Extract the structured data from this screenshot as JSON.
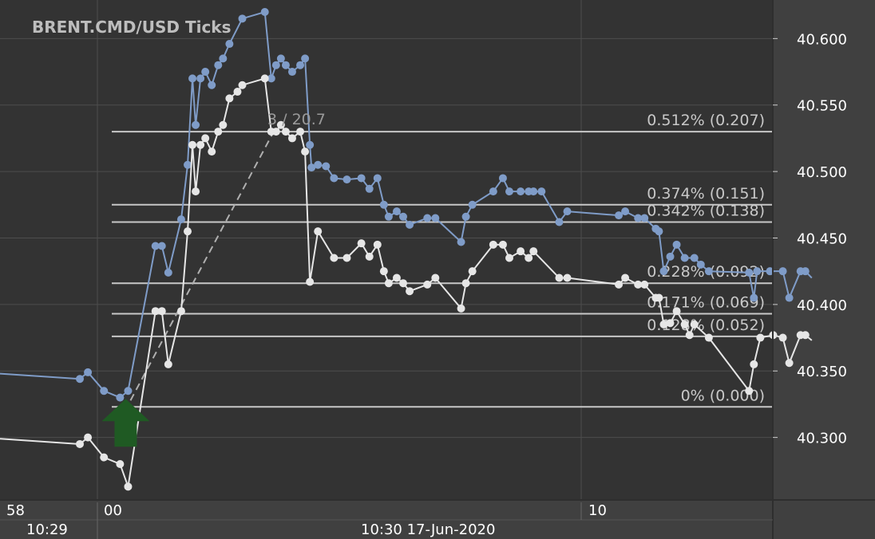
{
  "chart_data": {
    "type": "line",
    "title": "BRENT.CMD/USD  Ticks",
    "ylim": [
      40.253,
      40.629
    ],
    "y_ticks": [
      "40.600",
      "40.550",
      "40.500",
      "40.450",
      "40.400",
      "40.350",
      "40.300"
    ],
    "x_time_labels": [
      "58",
      "00",
      "10"
    ],
    "x_date_labels": [
      "10:29",
      "10:30 17-Jun-2020"
    ],
    "grid": true,
    "colors": {
      "background": "#333333",
      "axis_background": "#404040",
      "grid": "#4d4d4d",
      "ask": "#7f9cc8",
      "bid": "#e6e6e6",
      "fib_line": "#c8c8c8",
      "arrow": "#1f5a23",
      "dashed": "#b0b0b0"
    },
    "series": [
      {
        "values": [
          [
            0,
            40.348
          ],
          [
            6.5,
            40.344
          ],
          [
            7,
            40.349
          ],
          [
            8,
            40.335
          ],
          [
            9,
            40.33
          ],
          [
            9.5,
            40.335
          ],
          [
            11.2,
            40.444
          ],
          [
            11.6,
            40.444
          ],
          [
            12,
            40.424
          ],
          [
            12.8,
            40.464
          ],
          [
            13.2,
            40.505
          ],
          [
            13.5,
            40.57
          ],
          [
            13.7,
            40.535
          ],
          [
            14,
            40.57
          ],
          [
            14.3,
            40.575
          ],
          [
            14.7,
            40.565
          ],
          [
            15.1,
            40.58
          ],
          [
            15.4,
            40.585
          ],
          [
            15.8,
            40.596
          ],
          [
            16.6,
            40.615
          ],
          [
            18,
            40.62
          ],
          [
            18.4,
            40.57
          ],
          [
            18.7,
            40.58
          ],
          [
            19,
            40.585
          ],
          [
            19.3,
            40.58
          ],
          [
            19.7,
            40.575
          ],
          [
            20.2,
            40.58
          ],
          [
            20.5,
            40.585
          ],
          [
            20.8,
            40.52
          ],
          [
            20.9,
            40.503
          ],
          [
            21.3,
            40.505
          ],
          [
            21.8,
            40.504
          ],
          [
            22.3,
            40.495
          ],
          [
            23.1,
            40.494
          ],
          [
            24,
            40.495
          ],
          [
            24.5,
            40.487
          ],
          [
            25,
            40.495
          ],
          [
            25.4,
            40.475
          ],
          [
            25.7,
            40.466
          ],
          [
            26.2,
            40.47
          ],
          [
            26.6,
            40.466
          ],
          [
            27,
            40.46
          ],
          [
            28.1,
            40.465
          ],
          [
            28.6,
            40.465
          ],
          [
            30.2,
            40.447
          ],
          [
            30.5,
            40.466
          ],
          [
            30.9,
            40.475
          ],
          [
            32.2,
            40.485
          ],
          [
            32.8,
            40.495
          ],
          [
            33.2,
            40.485
          ],
          [
            33.9,
            40.485
          ],
          [
            34.4,
            40.485
          ],
          [
            34.7,
            40.485
          ],
          [
            35.2,
            40.485
          ],
          [
            36.3,
            40.462
          ],
          [
            36.8,
            40.47
          ],
          [
            40,
            40.467
          ],
          [
            40.4,
            40.47
          ],
          [
            41.2,
            40.465
          ],
          [
            41.6,
            40.465
          ],
          [
            42.3,
            40.457
          ],
          [
            42.5,
            40.455
          ],
          [
            42.8,
            40.425
          ],
          [
            43.2,
            40.436
          ],
          [
            43.6,
            40.445
          ],
          [
            44.1,
            40.435
          ],
          [
            44.7,
            40.435
          ],
          [
            45.1,
            40.43
          ],
          [
            45.6,
            40.425
          ],
          [
            48.1,
            40.424
          ],
          [
            48.4,
            40.405
          ],
          [
            48.6,
            40.425
          ],
          [
            49.4,
            40.425
          ],
          [
            50.2,
            40.425
          ],
          [
            50.6,
            40.405
          ],
          [
            51.3,
            40.425
          ],
          [
            51.6,
            40.425
          ],
          [
            52,
            40.42
          ]
        ]
      },
      {
        "values": [
          [
            0,
            40.299
          ],
          [
            6.5,
            40.295
          ],
          [
            7,
            40.3
          ],
          [
            8,
            40.285
          ],
          [
            9,
            40.28
          ],
          [
            9.5,
            40.263
          ],
          [
            11.2,
            40.395
          ],
          [
            11.6,
            40.395
          ],
          [
            12,
            40.355
          ],
          [
            12.8,
            40.395
          ],
          [
            13.2,
            40.455
          ],
          [
            13.5,
            40.52
          ],
          [
            13.7,
            40.485
          ],
          [
            14,
            40.52
          ],
          [
            14.3,
            40.525
          ],
          [
            14.7,
            40.515
          ],
          [
            15.1,
            40.53
          ],
          [
            15.4,
            40.535
          ],
          [
            15.8,
            40.555
          ],
          [
            16.3,
            40.56
          ],
          [
            16.6,
            40.565
          ],
          [
            18,
            40.57
          ],
          [
            18.4,
            40.53
          ],
          [
            18.7,
            40.53
          ],
          [
            19,
            40.535
          ],
          [
            19.3,
            40.53
          ],
          [
            19.7,
            40.525
          ],
          [
            20.2,
            40.53
          ],
          [
            20.5,
            40.515
          ],
          [
            20.8,
            40.417
          ],
          [
            21.3,
            40.455
          ],
          [
            22.3,
            40.435
          ],
          [
            23.1,
            40.435
          ],
          [
            24,
            40.446
          ],
          [
            24.5,
            40.436
          ],
          [
            25,
            40.445
          ],
          [
            25.4,
            40.425
          ],
          [
            25.7,
            40.416
          ],
          [
            26.2,
            40.42
          ],
          [
            26.6,
            40.416
          ],
          [
            27,
            40.41
          ],
          [
            28.1,
            40.415
          ],
          [
            28.6,
            40.42
          ],
          [
            30.2,
            40.397
          ],
          [
            30.5,
            40.416
          ],
          [
            30.9,
            40.425
          ],
          [
            32.2,
            40.445
          ],
          [
            32.8,
            40.445
          ],
          [
            33.2,
            40.435
          ],
          [
            33.9,
            40.44
          ],
          [
            34.4,
            40.435
          ],
          [
            34.7,
            40.44
          ],
          [
            36.3,
            40.42
          ],
          [
            36.8,
            40.42
          ],
          [
            40,
            40.415
          ],
          [
            40.4,
            40.42
          ],
          [
            41.2,
            40.415
          ],
          [
            41.6,
            40.415
          ],
          [
            42.3,
            40.405
          ],
          [
            42.5,
            40.405
          ],
          [
            42.8,
            40.385
          ],
          [
            43.2,
            40.386
          ],
          [
            43.6,
            40.395
          ],
          [
            44.1,
            40.385
          ],
          [
            44.4,
            40.377
          ],
          [
            44.7,
            40.385
          ],
          [
            45.6,
            40.375
          ],
          [
            48.1,
            40.335
          ],
          [
            48.4,
            40.355
          ],
          [
            48.8,
            40.375
          ],
          [
            49.6,
            40.377
          ],
          [
            50.2,
            40.375
          ],
          [
            50.6,
            40.356
          ],
          [
            51.3,
            40.377
          ],
          [
            51.6,
            40.377
          ],
          [
            52,
            40.373
          ]
        ]
      }
    ],
    "fib_levels": [
      {
        "price": 40.53,
        "label": "0.512% (0.207)"
      },
      {
        "price": 40.475,
        "label": "0.374% (0.151)"
      },
      {
        "price": 40.462,
        "label": "0.342% (0.138)"
      },
      {
        "price": 40.416,
        "label": "0.228% (0.092)"
      },
      {
        "price": 40.393,
        "label": "0.171% (0.069)"
      },
      {
        "price": 40.376,
        "label": "0.128% (0.052)"
      },
      {
        "price": 40.323,
        "label": "0% (0.000)"
      }
    ],
    "annotation": "3 / 20.7",
    "dashed_line": [
      [
        9.5,
        40.323
      ],
      [
        18.4,
        40.53
      ]
    ],
    "arrow": {
      "x": 9.5,
      "price": 40.323,
      "direction": "up"
    }
  }
}
